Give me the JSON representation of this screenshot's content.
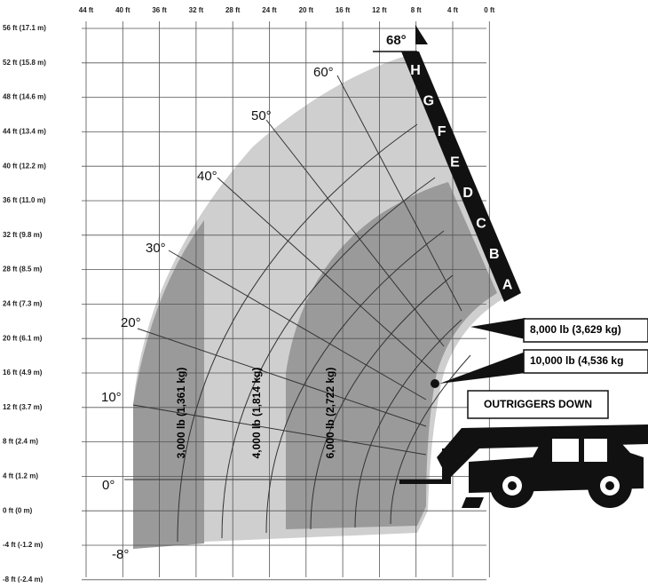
{
  "x_axis_labels": [
    "44 ft",
    "40 ft",
    "36 ft",
    "32 ft",
    "28 ft",
    "24 ft",
    "20 ft",
    "16 ft",
    "12 ft",
    "8 ft",
    "4 ft",
    "0 ft"
  ],
  "y_axis_labels": [
    "56 ft (17.1 m)",
    "52 ft (15.8 m)",
    "48 ft (14.6 m)",
    "44 ft (13.4 m)",
    "40 ft (12.2 m)",
    "36 ft (11.0 m)",
    "32 ft (9.8 m)",
    "28 ft (8.5 m)",
    "24 ft (7.3 m)",
    "20 ft (6.1 m)",
    "16 ft (4.9 m)",
    "12 ft (3.7 m)",
    "8 ft (2.4 m)",
    "4 ft (1.2 m)",
    "0 ft (0 m)",
    "-4 ft (-1.2 m)",
    "-8 ft (-2.4 m)"
  ],
  "angle_labels": [
    "68°",
    "60°",
    "50°",
    "40°",
    "30°",
    "20°",
    "10°",
    "0°",
    "-8°"
  ],
  "boom_sections": [
    "H",
    "G",
    "F",
    "E",
    "D",
    "C",
    "B",
    "A"
  ],
  "zone_labels": [
    "3,000 lb (1,361 kg)",
    "4,000 lb (1,814 kg)",
    "6,000 lb (2,722 kg)"
  ],
  "callouts": [
    "8,000 lb (3,629 kg)",
    "10,000 lb (4,536 kg"
  ],
  "outriggers": "OUTRIGGERS DOWN"
}
